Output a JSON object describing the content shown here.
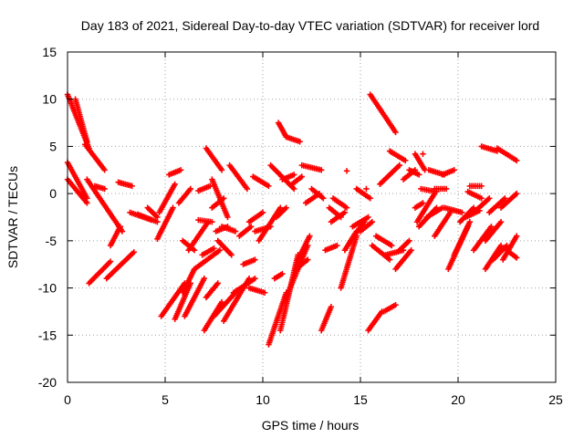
{
  "chart_data": {
    "type": "scatter",
    "title": "Day 183 of 2021, Sidereal Day-to-day VTEC variation (SDTVAR) for receiver lord",
    "xlabel": "GPS time / hours",
    "ylabel": "SDTVAR / TECUs",
    "xlim": [
      0,
      25
    ],
    "ylim": [
      -20,
      15
    ],
    "xticks": [
      0,
      5,
      10,
      15,
      20,
      25
    ],
    "yticks": [
      -20,
      -15,
      -10,
      -5,
      0,
      5,
      10,
      15
    ],
    "grid": true,
    "marker": "plus",
    "color": "#ff0000",
    "tracks": [
      {
        "x0": 0.0,
        "x1": 1.1,
        "y0": 10.5,
        "y1": 4.8
      },
      {
        "x0": 0.0,
        "x1": 1.0,
        "y0": 3.3,
        "y1": -0.5
      },
      {
        "x0": 0.0,
        "x1": 1.0,
        "y0": 1.5,
        "y1": -1.0
      },
      {
        "x0": 0.4,
        "x1": 1.0,
        "y0": 10.0,
        "y1": 5.5
      },
      {
        "x0": 0.9,
        "x1": 1.9,
        "y0": 5.2,
        "y1": 2.5
      },
      {
        "x0": 1.0,
        "x1": 2.8,
        "y0": 1.5,
        "y1": -4.0
      },
      {
        "x0": 1.1,
        "x1": 2.2,
        "y0": -9.5,
        "y1": -7.2
      },
      {
        "x0": 1.4,
        "x1": 1.9,
        "y0": 0.8,
        "y1": 0.5
      },
      {
        "x0": 2.0,
        "x1": 3.4,
        "y0": -9.0,
        "y1": -6.2
      },
      {
        "x0": 2.2,
        "x1": 2.7,
        "y0": -5.5,
        "y1": -3.5
      },
      {
        "x0": 2.6,
        "x1": 3.3,
        "y0": 1.2,
        "y1": 0.8
      },
      {
        "x0": 3.2,
        "x1": 4.3,
        "y0": -2.0,
        "y1": -2.8
      },
      {
        "x0": 3.6,
        "x1": 4.6,
        "y0": -2.2,
        "y1": -3.0
      },
      {
        "x0": 4.1,
        "x1": 4.6,
        "y0": -1.5,
        "y1": -2.5
      },
      {
        "x0": 4.6,
        "x1": 5.4,
        "y0": -4.8,
        "y1": -1.5
      },
      {
        "x0": 4.7,
        "x1": 5.5,
        "y0": -2.0,
        "y1": 1.0
      },
      {
        "x0": 4.8,
        "x1": 6.0,
        "y0": -13.0,
        "y1": -9.5
      },
      {
        "x0": 5.2,
        "x1": 5.8,
        "y0": 2.0,
        "y1": 2.5
      },
      {
        "x0": 5.5,
        "x1": 6.3,
        "y0": -13.3,
        "y1": -9.5
      },
      {
        "x0": 5.7,
        "x1": 6.3,
        "y0": -1.0,
        "y1": 0.5
      },
      {
        "x0": 5.9,
        "x1": 6.5,
        "y0": -5.0,
        "y1": -6.0
      },
      {
        "x0": 5.9,
        "x1": 6.5,
        "y0": -10.5,
        "y1": -8.0
      },
      {
        "x0": 6.0,
        "x1": 7.0,
        "y0": -13.0,
        "y1": -9.0
      },
      {
        "x0": 6.2,
        "x1": 7.2,
        "y0": -6.0,
        "y1": -3.0
      },
      {
        "x0": 6.5,
        "x1": 7.8,
        "y0": -8.0,
        "y1": -6.0
      },
      {
        "x0": 6.7,
        "x1": 7.3,
        "y0": 0.3,
        "y1": 0.8
      },
      {
        "x0": 6.7,
        "x1": 7.4,
        "y0": -2.8,
        "y1": -3.0
      },
      {
        "x0": 6.9,
        "x1": 7.5,
        "y0": -6.5,
        "y1": -5.8
      },
      {
        "x0": 7.0,
        "x1": 7.9,
        "y0": -14.5,
        "y1": -11.5
      },
      {
        "x0": 7.1,
        "x1": 7.7,
        "y0": -11.0,
        "y1": -9.5
      },
      {
        "x0": 7.1,
        "x1": 7.9,
        "y0": 4.8,
        "y1": 2.5
      },
      {
        "x0": 7.4,
        "x1": 8.0,
        "y0": -1.5,
        "y1": -0.5
      },
      {
        "x0": 7.4,
        "x1": 8.2,
        "y0": 1.5,
        "y1": -2.5
      },
      {
        "x0": 7.5,
        "x1": 8.6,
        "y0": -13.0,
        "y1": -10.5
      },
      {
        "x0": 7.6,
        "x1": 8.2,
        "y0": -4.0,
        "y1": -3.5
      },
      {
        "x0": 7.7,
        "x1": 8.4,
        "y0": -5.0,
        "y1": -6.5
      },
      {
        "x0": 7.9,
        "x1": 8.6,
        "y0": -3.5,
        "y1": -4.0
      },
      {
        "x0": 8.0,
        "x1": 9.3,
        "y0": -13.5,
        "y1": -9.0
      },
      {
        "x0": 8.3,
        "x1": 9.2,
        "y0": 3.0,
        "y1": 0.5
      },
      {
        "x0": 8.5,
        "x1": 9.6,
        "y0": -10.5,
        "y1": -9.0
      },
      {
        "x0": 8.8,
        "x1": 9.4,
        "y0": -4.5,
        "y1": -3.5
      },
      {
        "x0": 9.0,
        "x1": 9.6,
        "y0": -7.5,
        "y1": -7.0
      },
      {
        "x0": 9.3,
        "x1": 10.0,
        "y0": -3.0,
        "y1": -2.0
      },
      {
        "x0": 9.3,
        "x1": 10.1,
        "y0": -10.0,
        "y1": -10.5
      },
      {
        "x0": 9.5,
        "x1": 10.3,
        "y0": 1.8,
        "y1": 0.8
      },
      {
        "x0": 9.6,
        "x1": 10.4,
        "y0": -4.0,
        "y1": -3.5
      },
      {
        "x0": 9.8,
        "x1": 10.9,
        "y0": -5.0,
        "y1": -1.5
      },
      {
        "x0": 10.3,
        "x1": 11.2,
        "y0": -16.0,
        "y1": -10.5
      },
      {
        "x0": 10.4,
        "x1": 11.6,
        "y0": 3.0,
        "y1": 0.5
      },
      {
        "x0": 10.6,
        "x1": 11.0,
        "y0": -9.0,
        "y1": -8.5
      },
      {
        "x0": 10.7,
        "x1": 11.2,
        "y0": -2.5,
        "y1": -1.5
      },
      {
        "x0": 10.8,
        "x1": 11.2,
        "y0": 7.5,
        "y1": 6.0
      },
      {
        "x0": 10.9,
        "x1": 11.8,
        "y0": -14.5,
        "y1": -6.5
      },
      {
        "x0": 11.0,
        "x1": 11.6,
        "y0": 1.5,
        "y1": 2.0
      },
      {
        "x0": 11.2,
        "x1": 11.9,
        "y0": 6.0,
        "y1": 5.5
      },
      {
        "x0": 11.2,
        "x1": 12.3,
        "y0": -11.0,
        "y1": -5.5
      },
      {
        "x0": 11.5,
        "x1": 12.0,
        "y0": 1.0,
        "y1": 1.8
      },
      {
        "x0": 11.7,
        "x1": 12.3,
        "y0": -8.0,
        "y1": -7.0
      },
      {
        "x0": 11.8,
        "x1": 12.4,
        "y0": -7.0,
        "y1": -4.5
      },
      {
        "x0": 12.0,
        "x1": 13.0,
        "y0": 3.0,
        "y1": 2.5
      },
      {
        "x0": 12.2,
        "x1": 12.9,
        "y0": -1.0,
        "y1": 0.0
      },
      {
        "x0": 12.5,
        "x1": 13.1,
        "y0": 0.5,
        "y1": -0.5
      },
      {
        "x0": 13.0,
        "x1": 13.5,
        "y0": -14.5,
        "y1": -12.0
      },
      {
        "x0": 13.2,
        "x1": 13.8,
        "y0": -6.0,
        "y1": -5.5
      },
      {
        "x0": 13.4,
        "x1": 14.0,
        "y0": -1.5,
        "y1": -2.5
      },
      {
        "x0": 13.5,
        "x1": 14.2,
        "y0": -3.0,
        "y1": -2.0
      },
      {
        "x0": 13.6,
        "x1": 14.3,
        "y0": -0.5,
        "y1": -1.5
      },
      {
        "x0": 14.0,
        "x1": 14.8,
        "y0": -10.0,
        "y1": -4.5
      },
      {
        "x0": 14.2,
        "x1": 14.8,
        "y0": -6.0,
        "y1": -4.0
      },
      {
        "x0": 14.5,
        "x1": 15.2,
        "y0": -5.0,
        "y1": -3.0
      },
      {
        "x0": 14.6,
        "x1": 15.4,
        "y0": -3.5,
        "y1": -2.5
      },
      {
        "x0": 14.8,
        "x1": 15.5,
        "y0": 0.5,
        "y1": -0.5
      },
      {
        "x0": 15.0,
        "x1": 15.6,
        "y0": -4.0,
        "y1": -3.0
      },
      {
        "x0": 15.4,
        "x1": 16.1,
        "y0": -14.5,
        "y1": -12.5
      },
      {
        "x0": 15.5,
        "x1": 16.8,
        "y0": 10.5,
        "y1": 6.5
      },
      {
        "x0": 15.6,
        "x1": 16.5,
        "y0": -5.5,
        "y1": -7.0
      },
      {
        "x0": 15.8,
        "x1": 16.6,
        "y0": -4.5,
        "y1": -5.5
      },
      {
        "x0": 16.0,
        "x1": 17.0,
        "y0": 1.0,
        "y1": 3.0
      },
      {
        "x0": 16.2,
        "x1": 16.8,
        "y0": -12.5,
        "y1": -11.8
      },
      {
        "x0": 16.3,
        "x1": 17.2,
        "y0": -6.5,
        "y1": -6.0
      },
      {
        "x0": 16.5,
        "x1": 17.3,
        "y0": 4.5,
        "y1": 3.5
      },
      {
        "x0": 16.8,
        "x1": 17.6,
        "y0": -8.0,
        "y1": -6.0
      },
      {
        "x0": 17.0,
        "x1": 17.5,
        "y0": -6.0,
        "y1": -5.0
      },
      {
        "x0": 17.2,
        "x1": 17.8,
        "y0": 1.5,
        "y1": 2.5
      },
      {
        "x0": 17.5,
        "x1": 18.0,
        "y0": 2.5,
        "y1": 2.0
      },
      {
        "x0": 17.8,
        "x1": 18.3,
        "y0": 4.2,
        "y1": 2.5
      },
      {
        "x0": 17.8,
        "x1": 18.2,
        "y0": -1.5,
        "y1": -1.0
      },
      {
        "x0": 17.9,
        "x1": 18.8,
        "y0": -3.0,
        "y1": 0.0
      },
      {
        "x0": 18.0,
        "x1": 18.9,
        "y0": -3.5,
        "y1": -1.5
      },
      {
        "x0": 18.1,
        "x1": 18.9,
        "y0": 0.5,
        "y1": 0.2
      },
      {
        "x0": 18.4,
        "x1": 19.2,
        "y0": -2.5,
        "y1": -1.5
      },
      {
        "x0": 18.5,
        "x1": 19.3,
        "y0": 2.5,
        "y1": 2.0
      },
      {
        "x0": 18.8,
        "x1": 19.4,
        "y0": 0.5,
        "y1": 0.5
      },
      {
        "x0": 18.8,
        "x1": 19.6,
        "y0": -4.5,
        "y1": -2.0
      },
      {
        "x0": 19.2,
        "x1": 19.8,
        "y0": 2.0,
        "y1": 2.5
      },
      {
        "x0": 19.3,
        "x1": 20.2,
        "y0": -1.5,
        "y1": -2.0
      },
      {
        "x0": 19.5,
        "x1": 20.5,
        "y0": -8.0,
        "y1": -3.5
      },
      {
        "x0": 19.8,
        "x1": 20.6,
        "y0": -6.5,
        "y1": -3.0
      },
      {
        "x0": 20.1,
        "x1": 20.8,
        "y0": -3.0,
        "y1": -1.5
      },
      {
        "x0": 20.4,
        "x1": 21.1,
        "y0": -2.5,
        "y1": -1.8
      },
      {
        "x0": 20.5,
        "x1": 21.2,
        "y0": 0.2,
        "y1": -0.5
      },
      {
        "x0": 20.6,
        "x1": 21.2,
        "y0": 0.8,
        "y1": 0.8
      },
      {
        "x0": 20.8,
        "x1": 21.6,
        "y0": -2.0,
        "y1": -0.5
      },
      {
        "x0": 20.8,
        "x1": 21.7,
        "y0": -6.0,
        "y1": -3.5
      },
      {
        "x0": 21.2,
        "x1": 22.0,
        "y0": 5.0,
        "y1": 4.5
      },
      {
        "x0": 21.4,
        "x1": 22.2,
        "y0": -5.0,
        "y1": -3.0
      },
      {
        "x0": 21.4,
        "x1": 22.2,
        "y0": -8.0,
        "y1": -5.5
      },
      {
        "x0": 21.6,
        "x1": 22.4,
        "y0": -2.0,
        "y1": -0.5
      },
      {
        "x0": 21.8,
        "x1": 22.5,
        "y0": -7.0,
        "y1": -5.5
      },
      {
        "x0": 22.0,
        "x1": 23.0,
        "y0": 4.8,
        "y1": 3.5
      },
      {
        "x0": 22.2,
        "x1": 23.0,
        "y0": -1.5,
        "y1": 0.0
      },
      {
        "x0": 22.3,
        "x1": 23.0,
        "y0": -7.0,
        "y1": -4.5
      },
      {
        "x0": 22.5,
        "x1": 23.0,
        "y0": -6.0,
        "y1": -6.8
      }
    ],
    "points": [
      {
        "x": 14.3,
        "y": 2.4
      },
      {
        "x": 15.3,
        "y": 0.5
      },
      {
        "x": 17.0,
        "y": 3.0
      },
      {
        "x": 18.2,
        "y": 4.2
      }
    ]
  }
}
